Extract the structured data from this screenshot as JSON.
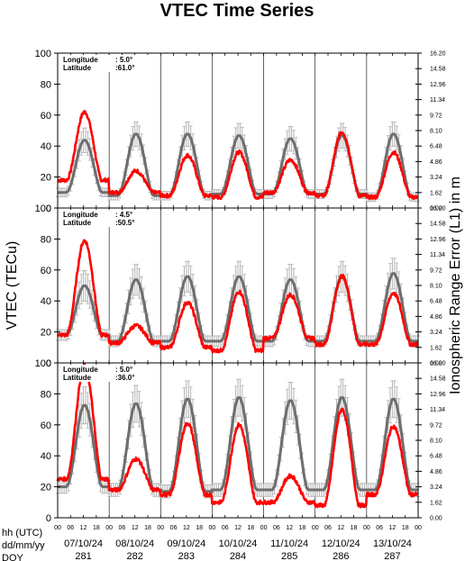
{
  "chart_data": {
    "type": "line",
    "title": "VTEC Time Series",
    "ylabel": "VTEC (TECu)",
    "y2label": "Ionospheric Range Error (L1) in m",
    "ylim": [
      0,
      100
    ],
    "yticks": [
      "0",
      "20",
      "40",
      "60",
      "80",
      "100"
    ],
    "y2ticks": [
      "0.00",
      "1.62",
      "3.24",
      "4.86",
      "6.48",
      "8.10",
      "9.72",
      "11.34",
      "12.96",
      "14.58",
      "16.20"
    ],
    "hour_ticks": [
      "00",
      "06",
      "12",
      "18"
    ],
    "row_labels": [
      "hh (UTC)",
      "dd/mm/yy",
      "DOY"
    ],
    "days": [
      {
        "date": "07/10/24",
        "doy": "281"
      },
      {
        "date": "08/10/24",
        "doy": "282"
      },
      {
        "date": "09/10/24",
        "doy": "283"
      },
      {
        "date": "10/10/24",
        "doy": "284"
      },
      {
        "date": "11/10/24",
        "doy": "285"
      },
      {
        "date": "12/10/24",
        "doy": "286"
      },
      {
        "date": "13/10/24",
        "doy": "287"
      }
    ],
    "panels": [
      {
        "longitude_label": "Longitude",
        "longitude": "5.0°",
        "latitude_label": "Latitude",
        "latitude": "61.0°",
        "reference": {
          "night": [
            10,
            8,
            8,
            9,
            9,
            9,
            7
          ],
          "peak": [
            44,
            48,
            48,
            47,
            45,
            47,
            48
          ],
          "spread": [
            8,
            8,
            8,
            8,
            8,
            8,
            8
          ]
        },
        "observed": {
          "night": [
            18,
            10,
            8,
            7,
            10,
            8,
            7
          ],
          "peak": [
            62,
            24,
            34,
            36,
            31,
            49,
            36
          ]
        }
      },
      {
        "longitude_label": "Longitude",
        "longitude": "4.5°",
        "latitude_label": "Latitude",
        "latitude": "50.5°",
        "reference": {
          "night": [
            18,
            14,
            14,
            14,
            14,
            14,
            14
          ],
          "peak": [
            50,
            54,
            56,
            56,
            54,
            56,
            58
          ],
          "spread": [
            10,
            10,
            10,
            10,
            10,
            10,
            10
          ]
        },
        "observed": {
          "night": [
            18,
            13,
            10,
            8,
            16,
            12,
            12
          ],
          "peak": [
            79,
            24,
            39,
            46,
            44,
            56,
            45
          ]
        }
      },
      {
        "longitude_label": "Longitude",
        "longitude": "5.0°",
        "latitude_label": "Latitude",
        "latitude": "36.0°",
        "reference": {
          "night": [
            20,
            18,
            17,
            18,
            18,
            18,
            18
          ],
          "peak": [
            73,
            74,
            77,
            78,
            76,
            78,
            77
          ],
          "spread": [
            12,
            12,
            12,
            12,
            12,
            12,
            12
          ]
        },
        "observed": {
          "night": [
            25,
            18,
            15,
            10,
            10,
            8,
            15
          ],
          "peak": [
            98,
            38,
            61,
            60,
            27,
            70,
            59
          ]
        }
      }
    ]
  }
}
